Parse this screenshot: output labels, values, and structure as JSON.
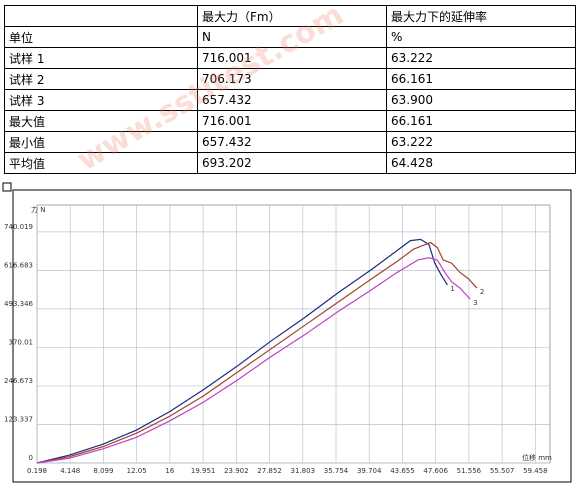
{
  "watermark": "www.sstitest.com",
  "table": {
    "header": [
      "最大力（Fm）",
      "最大力下的延伸率"
    ],
    "rows": [
      [
        "单位",
        "N",
        "%"
      ],
      [
        "试样 1",
        "716.001",
        "63.222"
      ],
      [
        "试样 2",
        "706.173",
        "66.161"
      ],
      [
        "试样 3",
        "657.432",
        "63.900"
      ],
      [
        "最大值",
        "716.001",
        "66.161"
      ],
      [
        "最小值",
        "657.432",
        "63.222"
      ],
      [
        "平均值",
        "693.202",
        "64.428"
      ]
    ]
  },
  "chart_data": {
    "type": "line",
    "y_label": "力 N",
    "x_label": "位移 mm",
    "xlim": [
      0.198,
      61.2
    ],
    "ylim": [
      0,
      826
    ],
    "xticks": [
      0.198,
      4.148,
      8.099,
      12.05,
      16,
      19.951,
      23.902,
      27.852,
      31.803,
      35.754,
      39.704,
      43.655,
      47.606,
      51.556,
      55.507,
      59.458
    ],
    "yticks": [
      0,
      123.337,
      246.673,
      370.01,
      493.346,
      616.683,
      740.019
    ],
    "grid": true,
    "series": [
      {
        "name": "1",
        "color": "#1f2a7a",
        "x": [
          0.198,
          4,
          8,
          12,
          16,
          20,
          24,
          28,
          32,
          36,
          40,
          43,
          44.6,
          45.8,
          46.8,
          47.5,
          48.3,
          49
        ],
        "values": [
          0,
          25,
          60,
          105,
          165,
          235,
          310,
          390,
          465,
          545,
          620,
          680,
          712,
          716,
          700,
          640,
          600,
          570
        ]
      },
      {
        "name": "2",
        "color": "#a0442c",
        "x": [
          0.198,
          4,
          8,
          12,
          16,
          20,
          24,
          28,
          32,
          36,
          40,
          43,
          45,
          47,
          47.8,
          48.5,
          49.5,
          50.5,
          51.5,
          52.5
        ],
        "values": [
          0,
          20,
          52,
          95,
          150,
          215,
          290,
          365,
          440,
          515,
          590,
          645,
          685,
          706,
          690,
          650,
          640,
          610,
          590,
          560
        ]
      },
      {
        "name": "3",
        "color": "#c040c0",
        "x": [
          0.198,
          4,
          8,
          12,
          16,
          20,
          24,
          28,
          32,
          36,
          40,
          43,
          45.5,
          46.8,
          47.8,
          48.7,
          49.5,
          50.5,
          51.7
        ],
        "values": [
          0,
          15,
          45,
          82,
          135,
          195,
          265,
          340,
          410,
          485,
          555,
          610,
          650,
          657,
          650,
          610,
          580,
          560,
          525
        ]
      }
    ]
  }
}
